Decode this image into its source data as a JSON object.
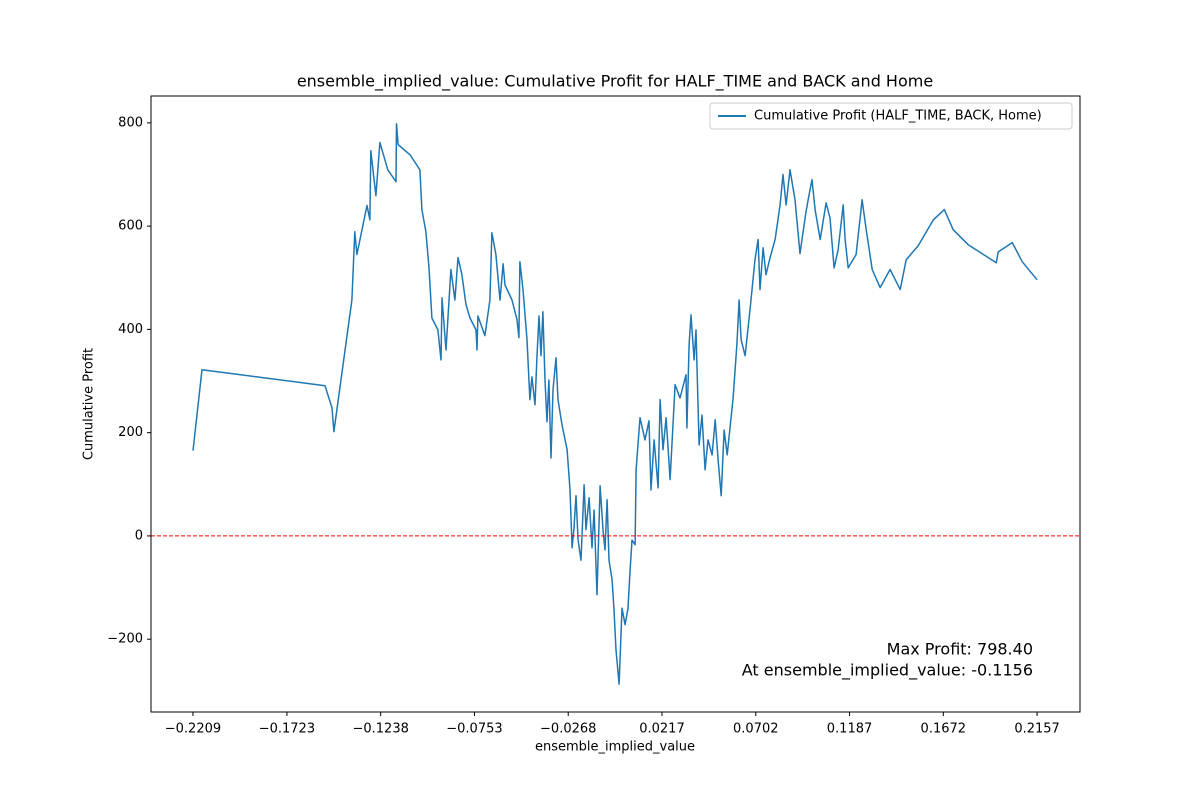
{
  "chart_data": {
    "type": "line",
    "title": "ensemble_implied_value: Cumulative Profit for HALF_TIME and BACK and Home",
    "x_label": "ensemble_implied_value",
    "y_label": "Cumulative Profit",
    "xlim": [
      -0.2426,
      0.2379
    ],
    "ylim": [
      -341,
      852
    ],
    "xticks": [
      {
        "value": -0.2209,
        "label": "−0.2209"
      },
      {
        "value": -0.1723,
        "label": "−0.1723"
      },
      {
        "value": -0.1238,
        "label": "−0.1238"
      },
      {
        "value": -0.0753,
        "label": "−0.0753"
      },
      {
        "value": -0.0268,
        "label": "−0.0268"
      },
      0.0217,
      0.0702,
      0.1187,
      0.1672,
      0.2157
    ],
    "yticks": [
      {
        "value": -200,
        "label": "−200"
      },
      0,
      200,
      400,
      600,
      800
    ],
    "legend": "upper right",
    "hline": {
      "value": 0,
      "color": "#ff0000"
    },
    "annotations": [
      "Max Profit: 798.40",
      "At ensemble_implied_value: -0.1156"
    ],
    "x": [
      -0.2209,
      -0.2162,
      -0.1526,
      -0.149,
      -0.148,
      -0.1387,
      -0.1372,
      -0.1361,
      -0.1309,
      -0.1294,
      -0.1289,
      -0.1263,
      -0.1242,
      -0.1201,
      -0.1159,
      -0.1156,
      -0.1148,
      -0.1086,
      -0.1035,
      -0.1025,
      -0.1004,
      -0.0988,
      -0.0973,
      -0.0942,
      -0.0926,
      -0.0921,
      -0.09,
      -0.0875,
      -0.0854,
      -0.0838,
      -0.0818,
      -0.0797,
      -0.0776,
      -0.0745,
      -0.074,
      -0.0735,
      -0.0699,
      -0.0673,
      -0.0663,
      -0.0642,
      -0.0621,
      -0.0605,
      -0.0595,
      -0.0559,
      -0.0533,
      -0.0523,
      -0.0518,
      -0.0502,
      -0.0481,
      -0.0466,
      -0.0456,
      -0.044,
      -0.043,
      -0.0419,
      -0.0409,
      -0.0399,
      -0.0388,
      -0.0378,
      -0.0368,
      -0.0357,
      -0.0347,
      -0.0331,
      -0.0321,
      -0.03,
      -0.0274,
      -0.0259,
      -0.0248,
      -0.0238,
      -0.0228,
      -0.0217,
      -0.0202,
      -0.0186,
      -0.0176,
      -0.016,
      -0.0145,
      -0.0134,
      -0.0119,
      -0.0103,
      -0.0088,
      -0.0078,
      -0.0067,
      -0.0057,
      -0.0041,
      -0.0031,
      -0.0021,
      -0.0005,
      0.001,
      0.0026,
      0.0041,
      0.0052,
      0.0062,
      0.0078,
      0.0083,
      0.0103,
      0.0129,
      0.015,
      0.016,
      0.0176,
      0.0197,
      0.0207,
      0.0222,
      0.0238,
      0.0259,
      0.0285,
      0.031,
      0.0341,
      0.0346,
      0.0357,
      0.0367,
      0.0383,
      0.0393,
      0.0409,
      0.0424,
      0.044,
      0.0455,
      0.0476,
      0.0492,
      0.0507,
      0.0523,
      0.0538,
      0.0554,
      0.0585,
      0.0605,
      0.0616,
      0.0626,
      0.0647,
      0.0672,
      0.0698,
      0.0714,
      0.0724,
      0.074,
      0.0755,
      0.0776,
      0.0802,
      0.0828,
      0.0843,
      0.0859,
      0.0879,
      0.0905,
      0.0931,
      0.0962,
      0.0978,
      0.0993,
      0.1009,
      0.1035,
      0.1066,
      0.1086,
      0.1107,
      0.1128,
      0.1154,
      0.1164,
      0.118,
      0.1221,
      0.1252,
      0.1273,
      0.1304,
      0.1345,
      0.1397,
      0.1449,
      0.148,
      0.1542,
      0.162,
      0.1677,
      0.1723,
      0.1801,
      0.1946,
      0.1956,
      0.2029,
      0.208,
      0.2157
    ],
    "series": [
      {
        "name": "Cumulative Profit (HALF_TIME, BACK, Home)",
        "color": "#1f77b4",
        "values": [
          165,
          322,
          291,
          248,
          202,
          457,
          589,
          545,
          640,
          612,
          746,
          659,
          762,
          709,
          686,
          798.4,
          758,
          738,
          709,
          632,
          589,
          519,
          422,
          399,
          341,
          461,
          360,
          516,
          457,
          539,
          506,
          448,
          422,
          399,
          360,
          426,
          388,
          457,
          587,
          545,
          457,
          527,
          486,
          457,
          419,
          384,
          531,
          477,
          380,
          264,
          308,
          254,
          345,
          426,
          349,
          434,
          302,
          221,
          302,
          151,
          283,
          345,
          264,
          215,
          167,
          89,
          -23,
          16,
          78,
          -8,
          -47,
          99,
          12,
          74,
          -23,
          50,
          -114,
          97,
          12,
          -27,
          70,
          -47,
          -85,
          -143,
          -221,
          -287,
          -140,
          -172,
          -140,
          -66,
          -8,
          -17,
          128,
          229,
          186,
          223,
          89,
          186,
          93,
          264,
          167,
          229,
          109,
          293,
          267,
          312,
          209,
          370,
          428,
          341,
          399,
          176,
          234,
          128,
          186,
          157,
          225,
          147,
          78,
          205,
          157,
          267,
          374,
          457,
          380,
          349,
          438,
          535,
          574,
          477,
          558,
          506,
          539,
          574,
          641,
          700,
          641,
          709,
          651,
          547,
          628,
          661,
          690,
          632,
          574,
          645,
          616,
          519,
          554,
          641,
          574,
          519,
          545,
          651,
          593,
          516,
          481,
          516,
          477,
          535,
          562,
          612,
          632,
          593,
          564,
          529,
          550,
          568,
          531,
          496
        ]
      }
    ]
  }
}
